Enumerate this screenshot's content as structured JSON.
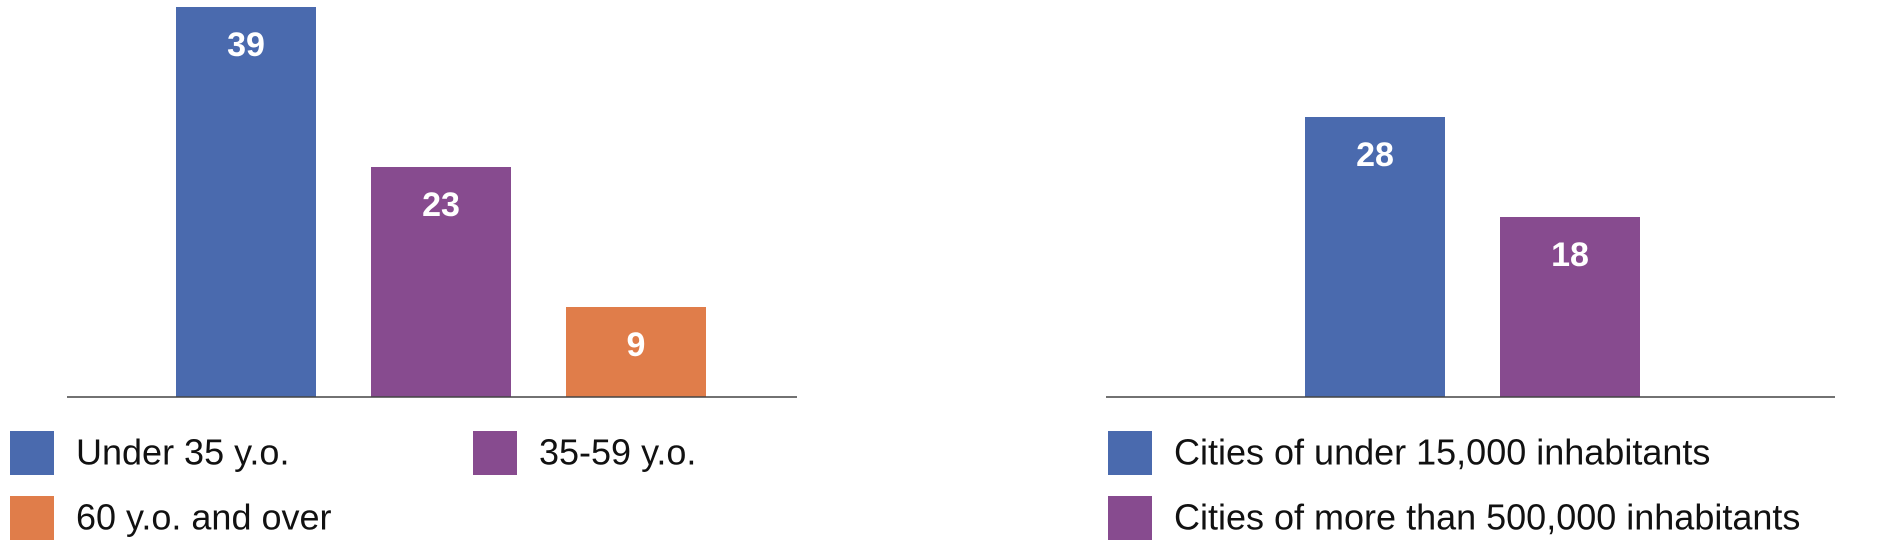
{
  "chart_data": [
    {
      "type": "bar",
      "ylim": [
        0,
        39
      ],
      "series": [
        {
          "name": "Under 35 y.o.",
          "color": "#4a6aae",
          "values": [
            39
          ]
        },
        {
          "name": "35-59 y.o.",
          "color": "#874b8f",
          "values": [
            23
          ]
        },
        {
          "name": "60 y.o. and over",
          "color": "#e07d4a",
          "values": [
            9
          ]
        }
      ]
    },
    {
      "type": "bar",
      "ylim": [
        0,
        39
      ],
      "series": [
        {
          "name": "Cities of under 15,000 inhabitants",
          "color": "#4a6aae",
          "values": [
            28
          ]
        },
        {
          "name": "Cities of more than 500,000 inhabitants",
          "color": "#874b8f",
          "values": [
            18
          ]
        }
      ]
    }
  ]
}
